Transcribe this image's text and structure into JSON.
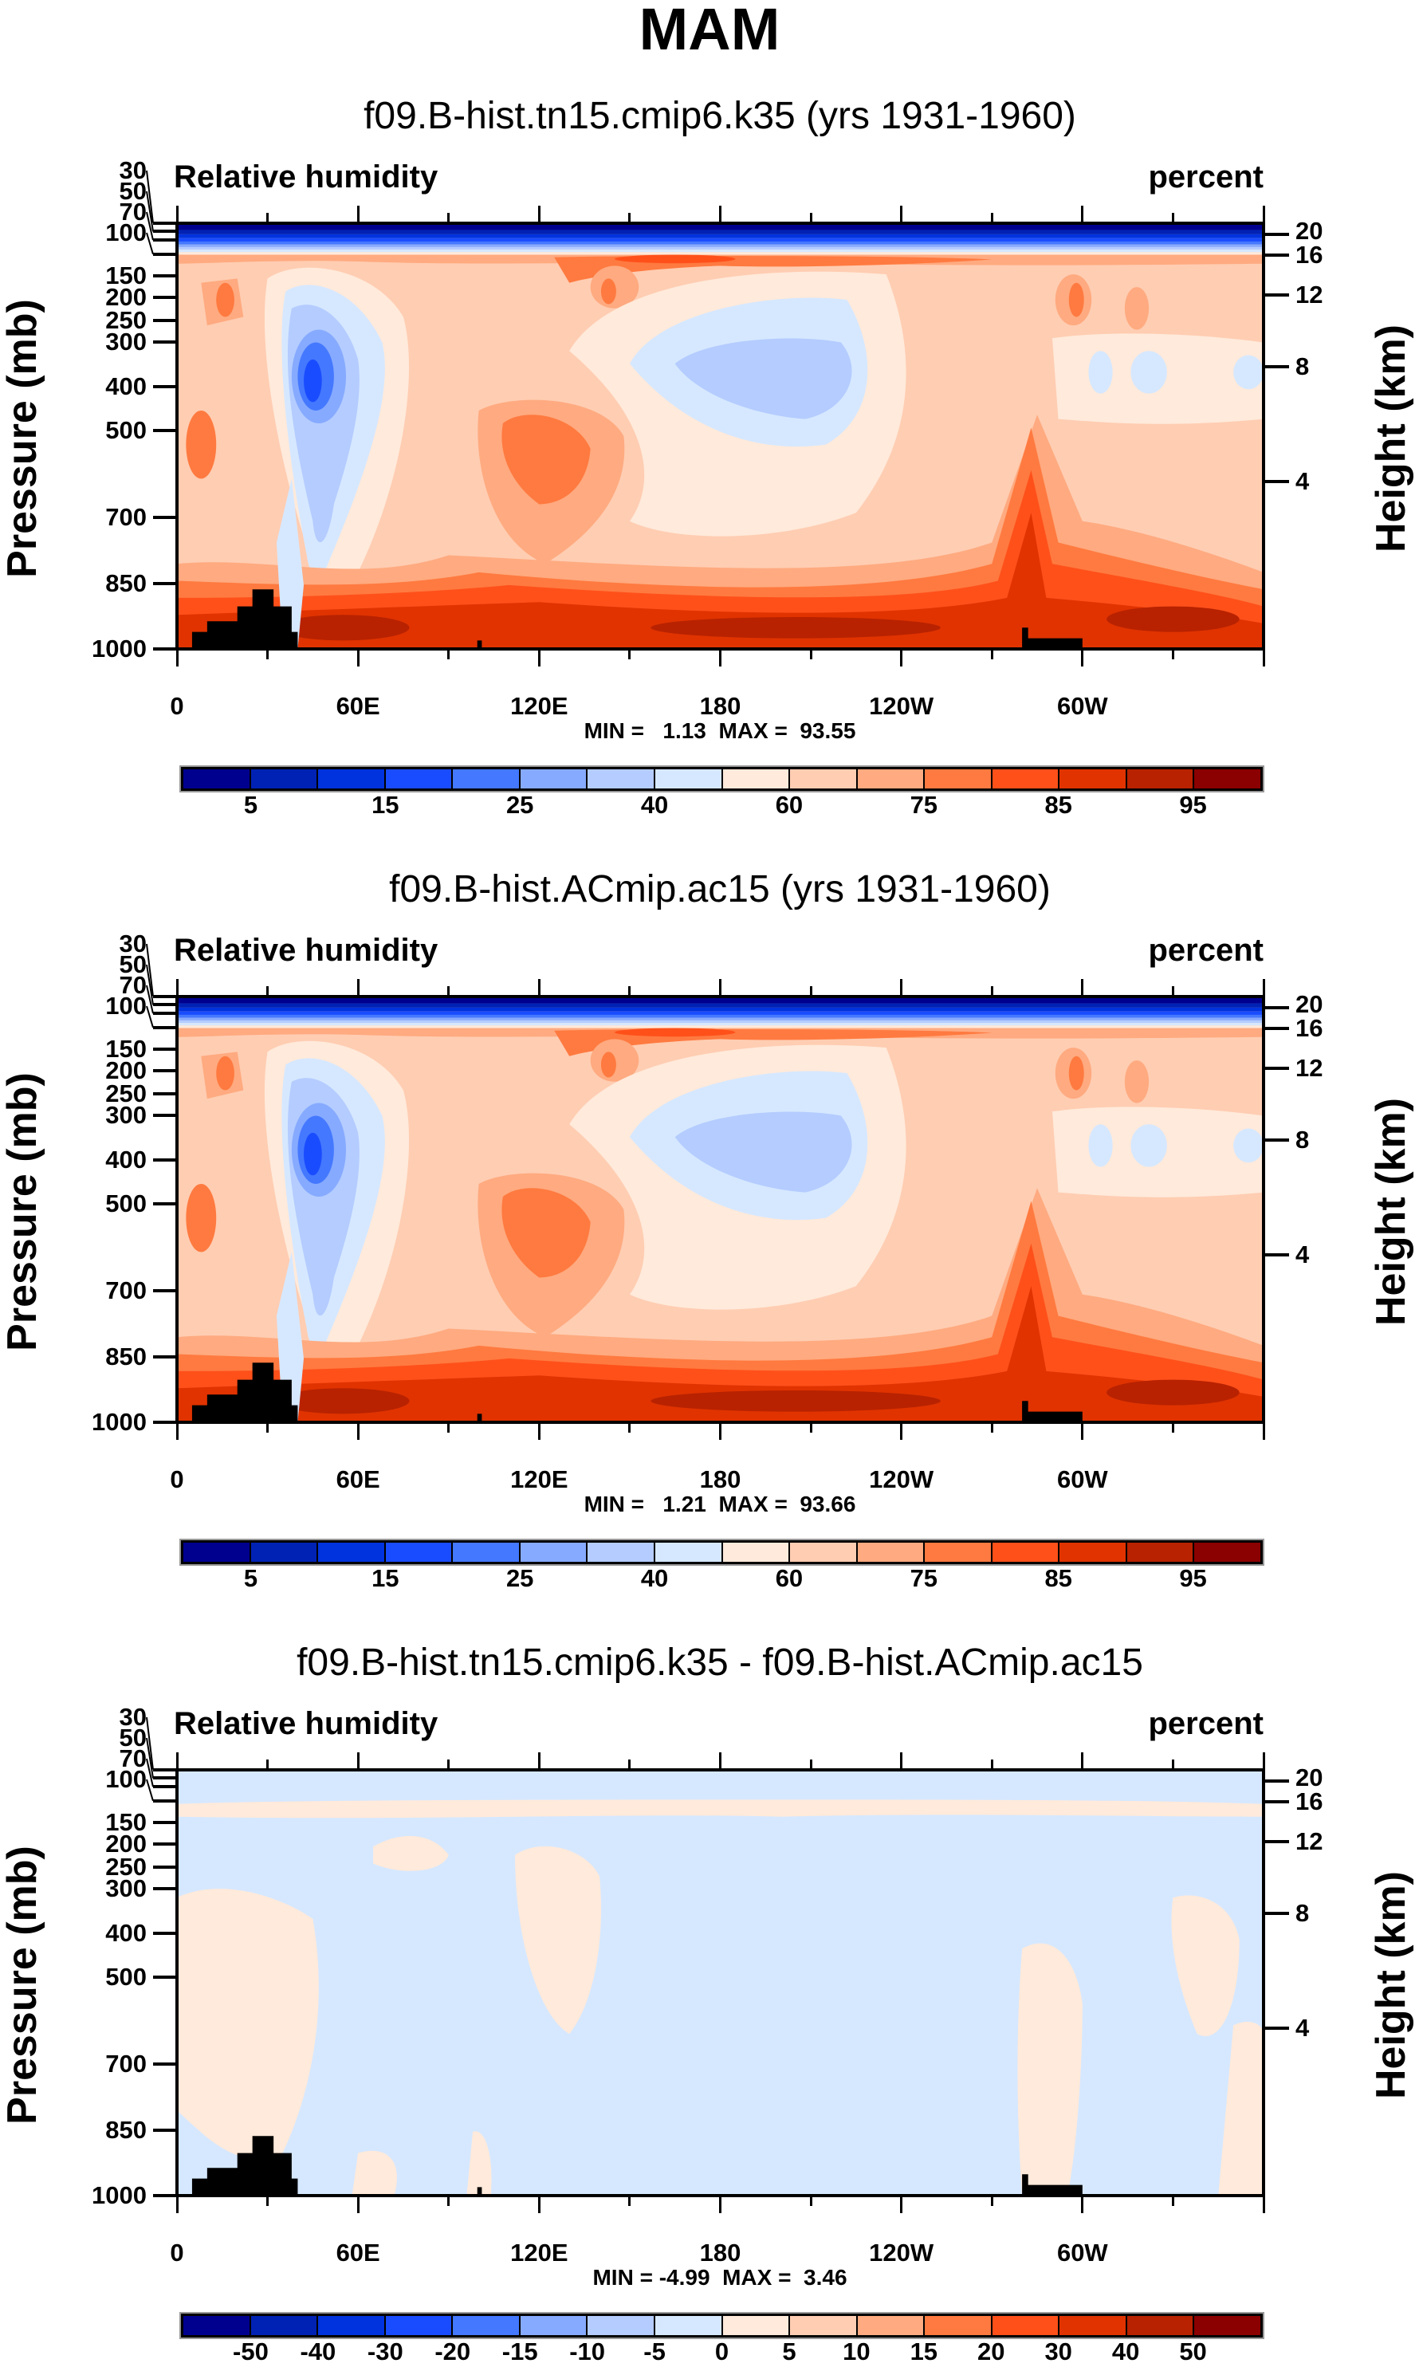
{
  "title": "MAM",
  "chart_data": [
    {
      "type": "heatmap",
      "title": "f09.B-hist.tn15.cmip6.k35 (yrs 1931-1960)",
      "left_label": "Relative humidity",
      "right_label": "percent",
      "xlabel": "",
      "ylabel": "Pressure (mb)",
      "ylabel_right": "Height (km)",
      "x_ticks": [
        "0",
        "60E",
        "120E",
        "180",
        "120W",
        "60W"
      ],
      "y_ticks": [
        "30",
        "50",
        "70",
        "100",
        "150",
        "200",
        "250",
        "300",
        "400",
        "500",
        "700",
        "850",
        "1000"
      ],
      "y_right_ticks": [
        "20",
        "16",
        "12",
        "8",
        "4"
      ],
      "xlim": [
        0,
        360
      ],
      "ylim": [
        1000,
        30
      ],
      "min_label": "MIN =   1.13",
      "max_label": "MAX =  93.55",
      "min": 1.13,
      "max": 93.55,
      "field": "rh",
      "colorbar_labels": [
        "5",
        "15",
        "25",
        "40",
        "60",
        "75",
        "85",
        "95"
      ],
      "colorbar_label_every": 2
    },
    {
      "type": "heatmap",
      "title": "f09.B-hist.ACmip.ac15 (yrs 1931-1960)",
      "left_label": "Relative humidity",
      "right_label": "percent",
      "xlabel": "",
      "ylabel": "Pressure (mb)",
      "ylabel_right": "Height (km)",
      "x_ticks": [
        "0",
        "60E",
        "120E",
        "180",
        "120W",
        "60W"
      ],
      "y_ticks": [
        "30",
        "50",
        "70",
        "100",
        "150",
        "200",
        "250",
        "300",
        "400",
        "500",
        "700",
        "850",
        "1000"
      ],
      "y_right_ticks": [
        "20",
        "16",
        "12",
        "8",
        "4"
      ],
      "xlim": [
        0,
        360
      ],
      "ylim": [
        1000,
        30
      ],
      "min_label": "MIN =   1.21",
      "max_label": "MAX =  93.66",
      "min": 1.21,
      "max": 93.66,
      "field": "rh",
      "colorbar_labels": [
        "5",
        "15",
        "25",
        "40",
        "60",
        "75",
        "85",
        "95"
      ],
      "colorbar_label_every": 2
    },
    {
      "type": "heatmap",
      "title": "f09.B-hist.tn15.cmip6.k35 - f09.B-hist.ACmip.ac15",
      "left_label": "Relative humidity",
      "right_label": "percent",
      "xlabel": "",
      "ylabel": "Pressure (mb)",
      "ylabel_right": "Height (km)",
      "x_ticks": [
        "0",
        "60E",
        "120E",
        "180",
        "120W",
        "60W"
      ],
      "y_ticks": [
        "30",
        "50",
        "70",
        "100",
        "150",
        "200",
        "250",
        "300",
        "400",
        "500",
        "700",
        "850",
        "1000"
      ],
      "y_right_ticks": [
        "20",
        "16",
        "12",
        "8",
        "4"
      ],
      "xlim": [
        0,
        360
      ],
      "ylim": [
        1000,
        30
      ],
      "min_label": "MIN = -4.99",
      "max_label": "MAX =  3.46",
      "min": -4.99,
      "max": 3.46,
      "field": "diff",
      "colorbar_labels": [
        "-50",
        "-40",
        "-30",
        "-20",
        "-15",
        "-10",
        "-5",
        "0",
        "5",
        "10",
        "15",
        "20",
        "30",
        "40",
        "50"
      ],
      "colorbar_label_every": 1
    }
  ],
  "colormap": [
    "#00008f",
    "#0022b4",
    "#0033dd",
    "#1a4cff",
    "#4478ff",
    "#86aaff",
    "#b4ccff",
    "#d6e8ff",
    "#ffeadb",
    "#ffcdb2",
    "#ffaa80",
    "#ff7a40",
    "#ff501a",
    "#e03300",
    "#b82200",
    "#8b0000"
  ]
}
